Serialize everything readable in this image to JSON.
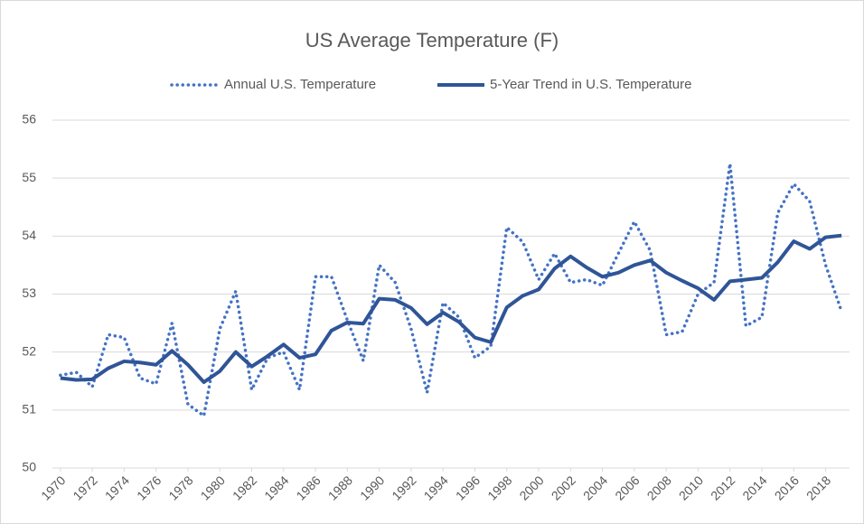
{
  "chart_data": {
    "type": "line",
    "title": "US Average Temperature (F)",
    "x": [
      1970,
      1971,
      1972,
      1973,
      1974,
      1975,
      1976,
      1977,
      1978,
      1979,
      1980,
      1981,
      1982,
      1983,
      1984,
      1985,
      1986,
      1987,
      1988,
      1989,
      1990,
      1991,
      1992,
      1993,
      1994,
      1995,
      1996,
      1997,
      1998,
      1999,
      2000,
      2001,
      2002,
      2003,
      2004,
      2005,
      2006,
      2007,
      2008,
      2009,
      2010,
      2011,
      2012,
      2013,
      2014,
      2015,
      2016,
      2017,
      2018,
      2019
    ],
    "series": [
      {
        "name": "Annual U.S. Temperature",
        "color": "#4472c4",
        "style": "dotted",
        "values": [
          51.6,
          51.65,
          51.4,
          52.3,
          52.25,
          51.55,
          51.45,
          52.5,
          51.1,
          50.9,
          52.4,
          53.05,
          51.35,
          51.9,
          52.0,
          51.35,
          53.3,
          53.3,
          52.55,
          51.85,
          53.5,
          53.2,
          52.4,
          51.3,
          52.85,
          52.6,
          51.9,
          52.1,
          54.15,
          53.9,
          53.25,
          53.7,
          53.2,
          53.25,
          53.15,
          53.7,
          54.25,
          53.75,
          52.3,
          52.35,
          53.0,
          53.2,
          55.25,
          52.45,
          52.6,
          54.4,
          54.9,
          54.6,
          53.5,
          52.7
        ]
      },
      {
        "name": "5-Year Trend in U.S. Temperature",
        "color": "#2f5597",
        "style": "solid",
        "values": [
          51.55,
          51.52,
          51.53,
          51.72,
          51.84,
          51.82,
          51.78,
          52.02,
          51.78,
          51.48,
          51.67,
          52.0,
          51.75,
          51.93,
          52.13,
          51.9,
          51.96,
          52.37,
          52.51,
          52.49,
          52.92,
          52.9,
          52.76,
          52.48,
          52.68,
          52.52,
          52.25,
          52.17,
          52.77,
          52.97,
          53.08,
          53.44,
          53.65,
          53.46,
          53.3,
          53.37,
          53.5,
          53.58,
          53.37,
          53.23,
          53.1,
          52.9,
          53.22,
          53.25,
          53.28,
          53.55,
          53.91,
          53.78,
          53.98,
          54.01
        ]
      }
    ],
    "xlim": [
      1969.5,
      2019.5
    ],
    "xticks": [
      1970,
      1972,
      1974,
      1976,
      1978,
      1980,
      1982,
      1984,
      1986,
      1988,
      1990,
      1992,
      1994,
      1996,
      1998,
      2000,
      2002,
      2004,
      2006,
      2008,
      2010,
      2012,
      2014,
      2016,
      2018
    ],
    "ylim": [
      50,
      56
    ],
    "yticks": [
      50,
      51,
      52,
      53,
      54,
      55,
      56
    ],
    "grid": true,
    "legend": "top"
  }
}
